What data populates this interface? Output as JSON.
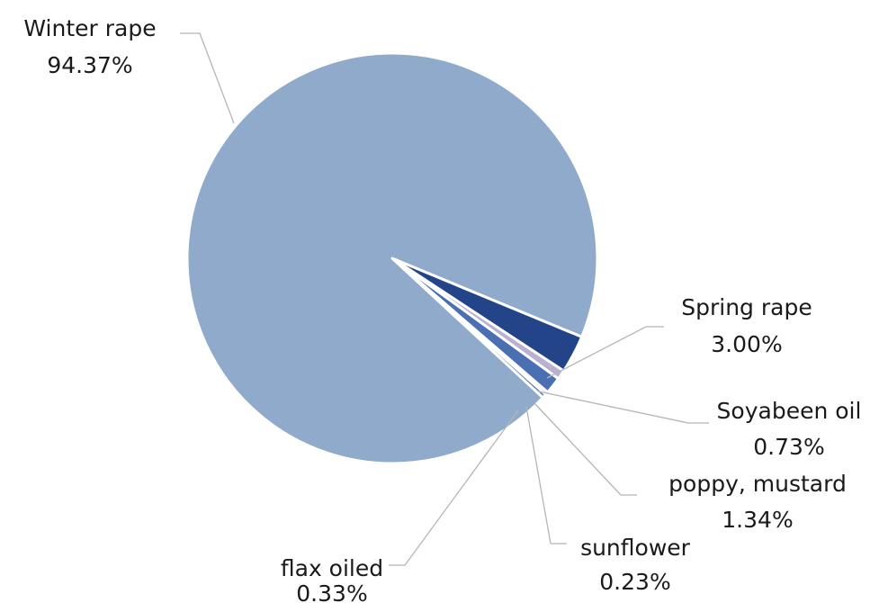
{
  "chart_data": {
    "type": "pie",
    "title": "",
    "slices": [
      {
        "name": "Winter rape",
        "value": 94.37,
        "label": "94.37%",
        "color": "#8faacb"
      },
      {
        "name": "Spring rape",
        "value": 3.0,
        "label": "3.00%",
        "color": "#24448a"
      },
      {
        "name": "Soyabeen oil",
        "value": 0.73,
        "label": "0.73%",
        "color": "#b9b0d3"
      },
      {
        "name": "poppy, mustard",
        "value": 1.34,
        "label": "1.34%",
        "color": "#4a6fb3"
      },
      {
        "name": "sunflower",
        "value": 0.23,
        "label": "0.23%",
        "color": "#7d98c4"
      },
      {
        "name": "flax oiled",
        "value": 0.33,
        "label": "0.33%",
        "color": "#5f7fb8"
      }
    ],
    "legend": "none",
    "label_style": "leader-lines"
  }
}
